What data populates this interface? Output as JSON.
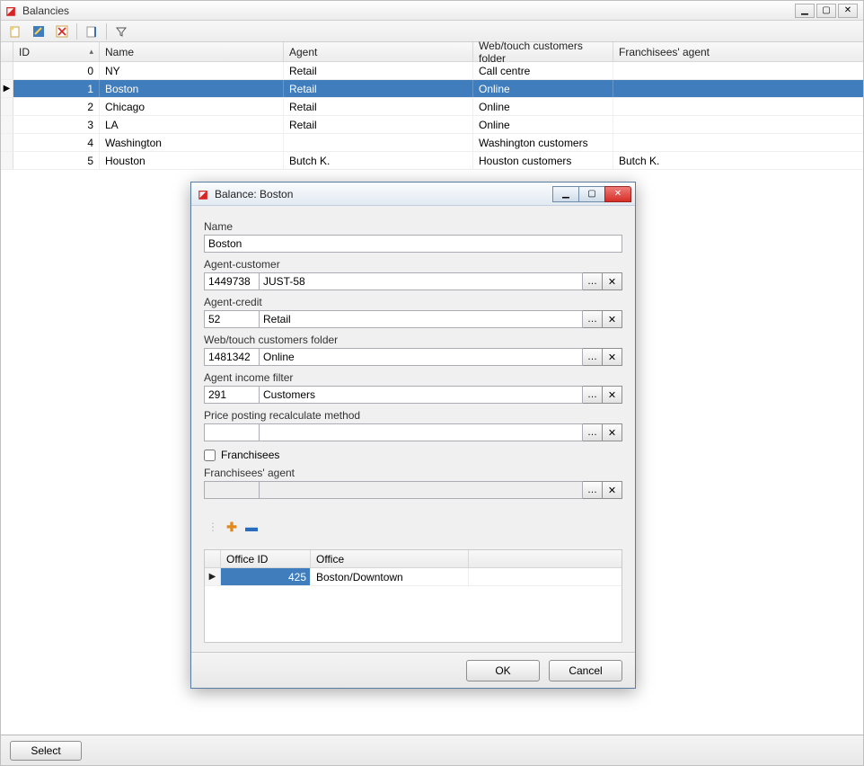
{
  "main": {
    "title": "Balancies",
    "columns": {
      "id": "ID",
      "name": "Name",
      "agent": "Agent",
      "folder": "Web/touch customers folder",
      "franch": "Franchisees' agent"
    },
    "rows": [
      {
        "id": "0",
        "name": "NY",
        "agent": "Retail",
        "folder": "Call centre",
        "franch": ""
      },
      {
        "id": "1",
        "name": "Boston",
        "agent": "Retail",
        "folder": "Online",
        "franch": ""
      },
      {
        "id": "2",
        "name": "Chicago",
        "agent": "Retail",
        "folder": "Online",
        "franch": ""
      },
      {
        "id": "3",
        "name": "LA",
        "agent": "Retail",
        "folder": "Online",
        "franch": ""
      },
      {
        "id": "4",
        "name": "Washington",
        "agent": "",
        "folder": "Washington customers",
        "franch": ""
      },
      {
        "id": "5",
        "name": "Houston",
        "agent": "Butch K.",
        "folder": "Houston customers",
        "franch": "Butch K."
      }
    ],
    "selectedIndex": 1,
    "selectBtn": "Select"
  },
  "dialog": {
    "title": "Balance: Boston",
    "name_label": "Name",
    "name_value": "Boston",
    "agent_customer_label": "Agent-customer",
    "agent_customer_code": "1449738",
    "agent_customer_desc": "JUST-58",
    "agent_credit_label": "Agent-credit",
    "agent_credit_code": "52",
    "agent_credit_desc": "Retail",
    "folder_label": "Web/touch customers folder",
    "folder_code": "1481342",
    "folder_desc": "Online",
    "income_label": "Agent income filter",
    "income_code": "291",
    "income_desc": "Customers",
    "price_label": "Price posting recalculate method",
    "price_code": "",
    "price_desc": "",
    "franchisees_cb": "Franchisees",
    "franch_agent_label": "Franchisees' agent",
    "franch_agent_code": "",
    "franch_agent_desc": "",
    "sub_columns": {
      "c1": "Office ID",
      "c2": "Office"
    },
    "sub_rows": [
      {
        "id": "425",
        "office": "Boston/Downtown"
      }
    ],
    "ok": "OK",
    "cancel": "Cancel",
    "dots": "…",
    "x": "✕"
  }
}
